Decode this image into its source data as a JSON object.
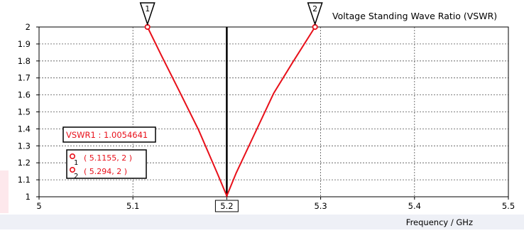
{
  "chart_data": {
    "type": "line",
    "title": "Voltage Standing Wave Ratio (VSWR)",
    "xlabel": "Frequency / GHz",
    "ylabel": "",
    "xlim": [
      5,
      5.5
    ],
    "ylim": [
      1,
      2
    ],
    "x_ticks": [
      "5",
      "5.1",
      "5.2",
      "5.3",
      "5.4",
      "5.5"
    ],
    "y_ticks": [
      "1",
      "1.1",
      "1.2",
      "1.3",
      "1.4",
      "1.5",
      "1.6",
      "1.7",
      "1.8",
      "1.9",
      "2"
    ],
    "grid": true,
    "series": [
      {
        "color": "#e8101a",
        "x": [
          5.1155,
          5.13,
          5.15,
          5.17,
          5.19,
          5.2,
          5.21,
          5.23,
          5.25,
          5.27,
          5.294
        ],
        "y": [
          2.0,
          1.836,
          1.616,
          1.393,
          1.137,
          1.005,
          1.14,
          1.375,
          1.61,
          1.79,
          2.0
        ]
      }
    ],
    "marker_line": {
      "x": 5.2,
      "label": "5.2",
      "color": "#000000"
    },
    "markers": [
      {
        "id": "1",
        "x": 5.1155,
        "y": 2
      },
      {
        "id": "2",
        "x": 5.294,
        "y": 2
      }
    ],
    "annotation": "VSWR1 : 1.0054641",
    "marker_readouts": [
      {
        "id": "1",
        "text": "( 5.1155, 2 )"
      },
      {
        "id": "2",
        "text": "( 5.294, 2 )"
      }
    ]
  }
}
